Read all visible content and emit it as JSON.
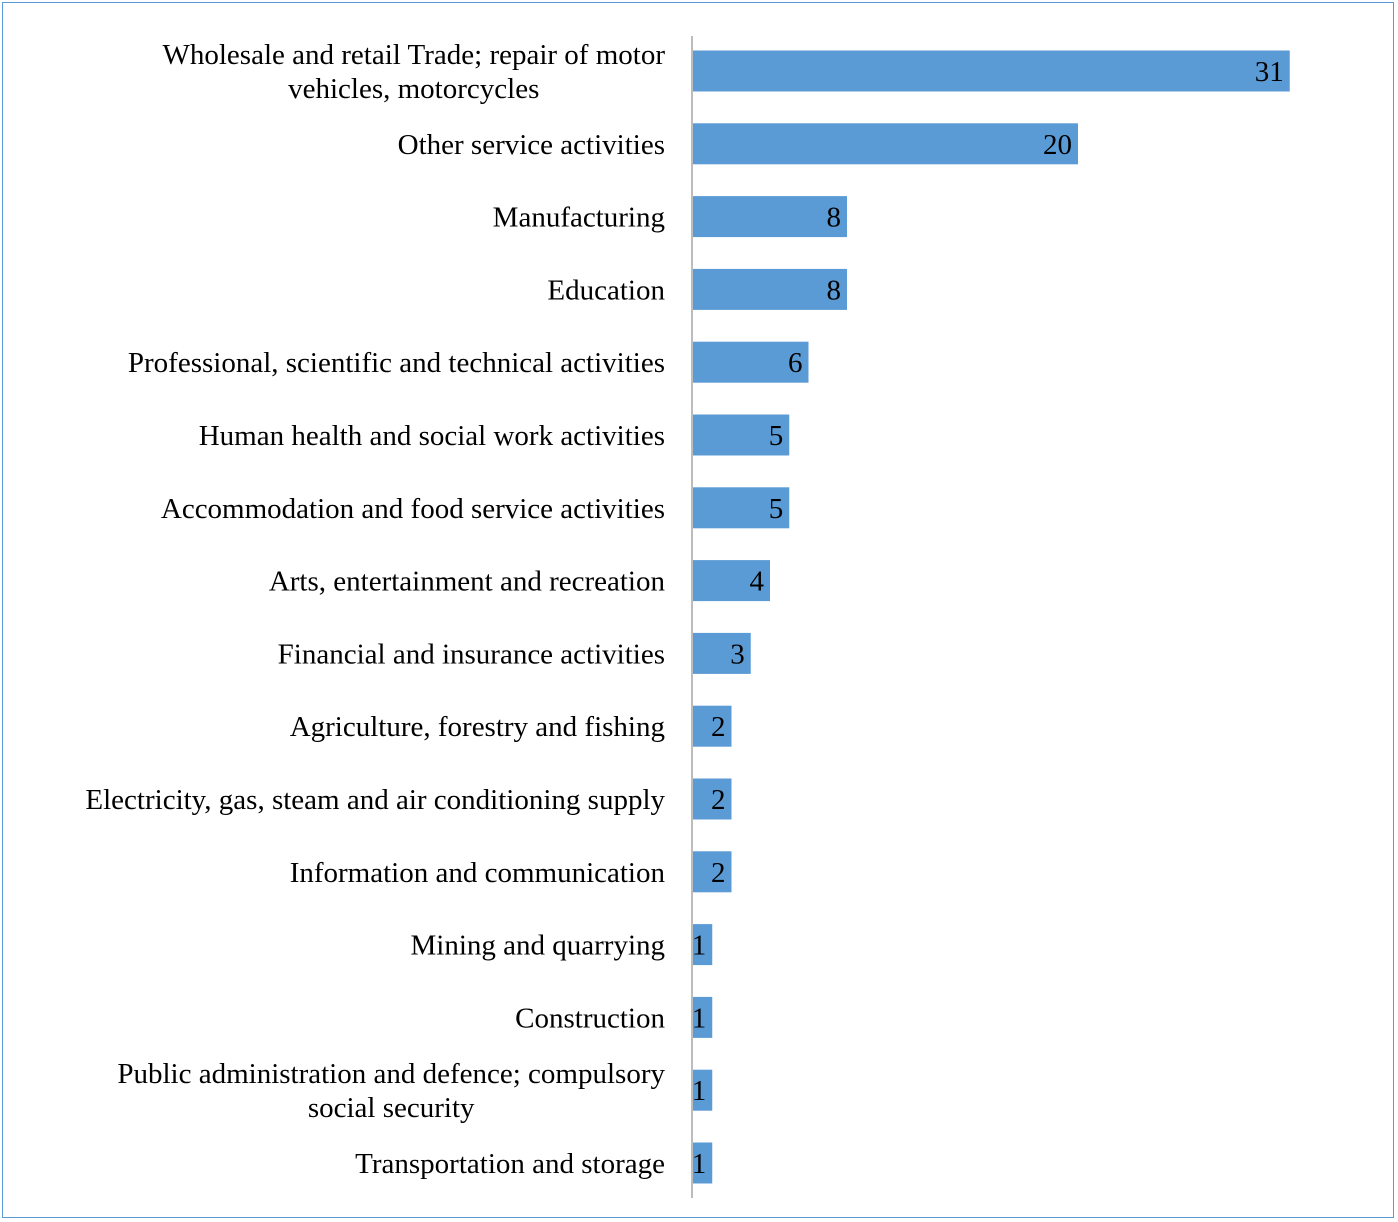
{
  "chart_data": {
    "type": "bar",
    "orientation": "horizontal",
    "categories": [
      [
        "Wholesale and retail Trade; repair of motor",
        "vehicles, motorcycles"
      ],
      [
        "Other service activities"
      ],
      [
        "Manufacturing"
      ],
      [
        "Education"
      ],
      [
        "Professional, scientific and technical activities"
      ],
      [
        "Human health and social work activities"
      ],
      [
        "Accommodation and food service activities"
      ],
      [
        "Arts, entertainment and recreation"
      ],
      [
        "Financial and insurance activities"
      ],
      [
        "Agriculture, forestry and fishing"
      ],
      [
        "Electricity, gas, steam and air conditioning supply"
      ],
      [
        "Information and communication"
      ],
      [
        "Mining and quarrying"
      ],
      [
        "Construction"
      ],
      [
        "Public administration and defence; compulsory",
        "social security"
      ],
      [
        "Transportation and storage"
      ]
    ],
    "values": [
      31,
      20,
      8,
      8,
      6,
      5,
      5,
      4,
      3,
      2,
      2,
      2,
      1,
      1,
      1,
      1
    ],
    "data_labels": [
      "31",
      "20",
      "8",
      "8",
      "6",
      "5",
      "5",
      "4",
      "3",
      "2",
      "2",
      "2",
      "1",
      "1",
      "1",
      "1"
    ],
    "xlim": [
      0,
      36
    ],
    "grid": false,
    "bar_color": "#5b9bd5",
    "axis_color": "#a6a6a6",
    "frame_color": "#5b9bd5"
  }
}
